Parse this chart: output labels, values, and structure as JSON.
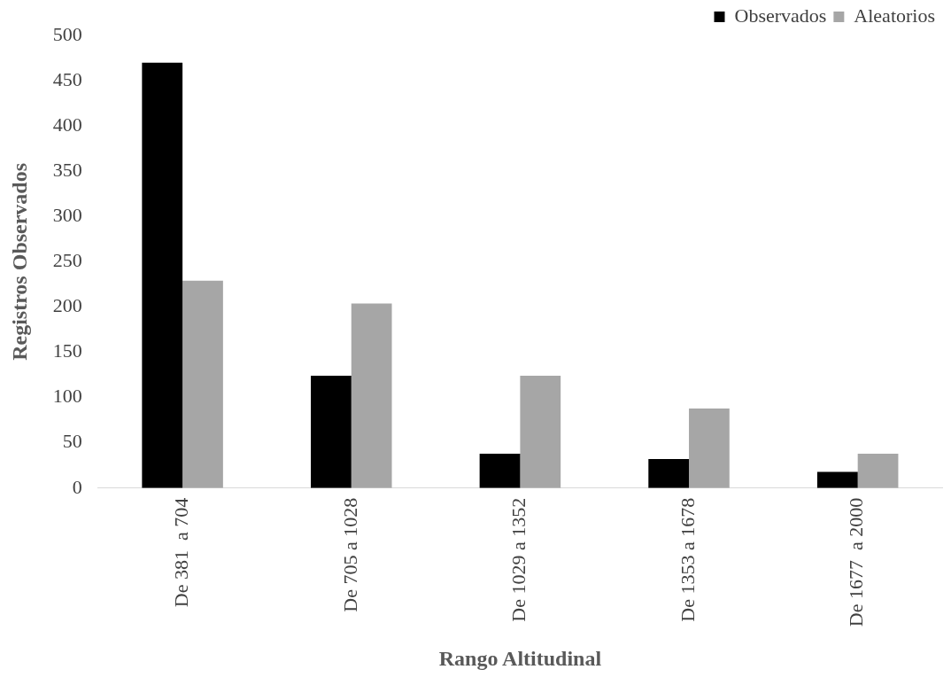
{
  "chart_data": {
    "type": "bar",
    "xlabel": "Rango Altitudinal",
    "ylabel": "Registros Observados",
    "categories": [
      "De 381  a 704",
      "De 705 a 1028",
      "De 1029 a 1352",
      "De 1353 a 1678",
      "De 1677  a 2000"
    ],
    "series": [
      {
        "name": "Observados",
        "color": "#000000",
        "values": [
          470,
          124,
          38,
          32,
          18
        ]
      },
      {
        "name": "Aleatorios",
        "color": "#a6a6a6",
        "values": [
          229,
          204,
          124,
          88,
          38
        ]
      }
    ],
    "ylim": [
      0,
      500
    ],
    "yticks": [
      0,
      50,
      100,
      150,
      200,
      250,
      300,
      350,
      400,
      450,
      500
    ],
    "grid": false,
    "legend": "top right"
  }
}
